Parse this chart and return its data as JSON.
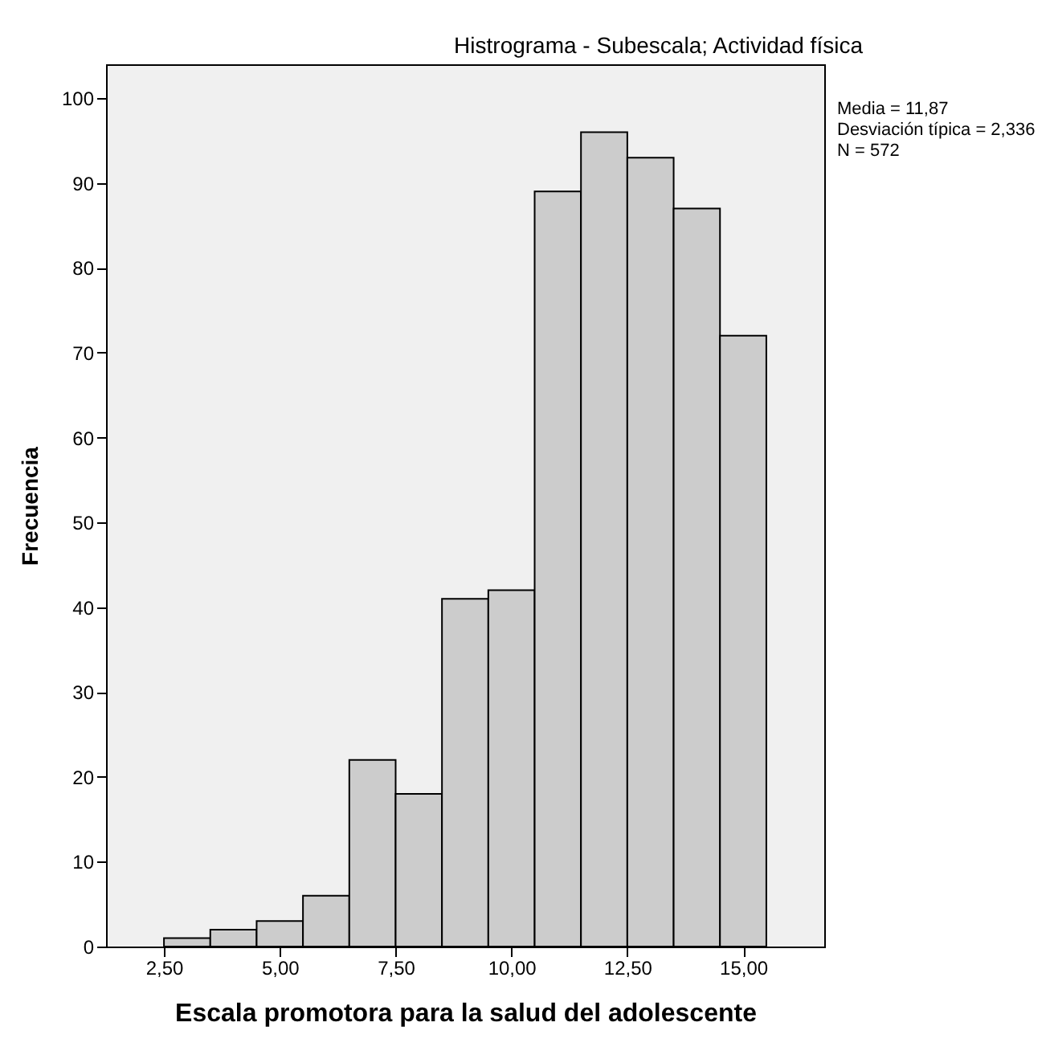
{
  "chart_data": {
    "type": "histogram",
    "title": "Histrograma - Subescala; Actividad física",
    "xlabel": "Escala promotora para la salud del adolescente",
    "ylabel": "Frecuencia",
    "bins": [
      2.5,
      3.5,
      4.5,
      5.5,
      6.5,
      7.5,
      8.5,
      9.5,
      10.5,
      11.5,
      12.5,
      13.5,
      14.5,
      15.5
    ],
    "values": [
      1,
      2,
      3,
      6,
      22,
      18,
      41,
      42,
      89,
      96,
      93,
      87,
      72
    ],
    "color": "#cccccc",
    "xlim": [
      1.25,
      16.75
    ],
    "xticks": [
      {
        "value": 2.5,
        "label": "2,50"
      },
      {
        "value": 5,
        "label": "5,00"
      },
      {
        "value": 7.5,
        "label": "7,50"
      },
      {
        "value": 10,
        "label": "10,00"
      },
      {
        "value": 12.5,
        "label": "12,50"
      },
      {
        "value": 15,
        "label": "15,00"
      }
    ],
    "ylim": [
      0,
      104
    ],
    "yticks": [
      0,
      10,
      20,
      30,
      40,
      50,
      60,
      70,
      80,
      90,
      100
    ],
    "annotations": [
      "Media = 11,87",
      "Desviación típica = 2,336",
      "N = 572"
    ],
    "grid": false
  }
}
